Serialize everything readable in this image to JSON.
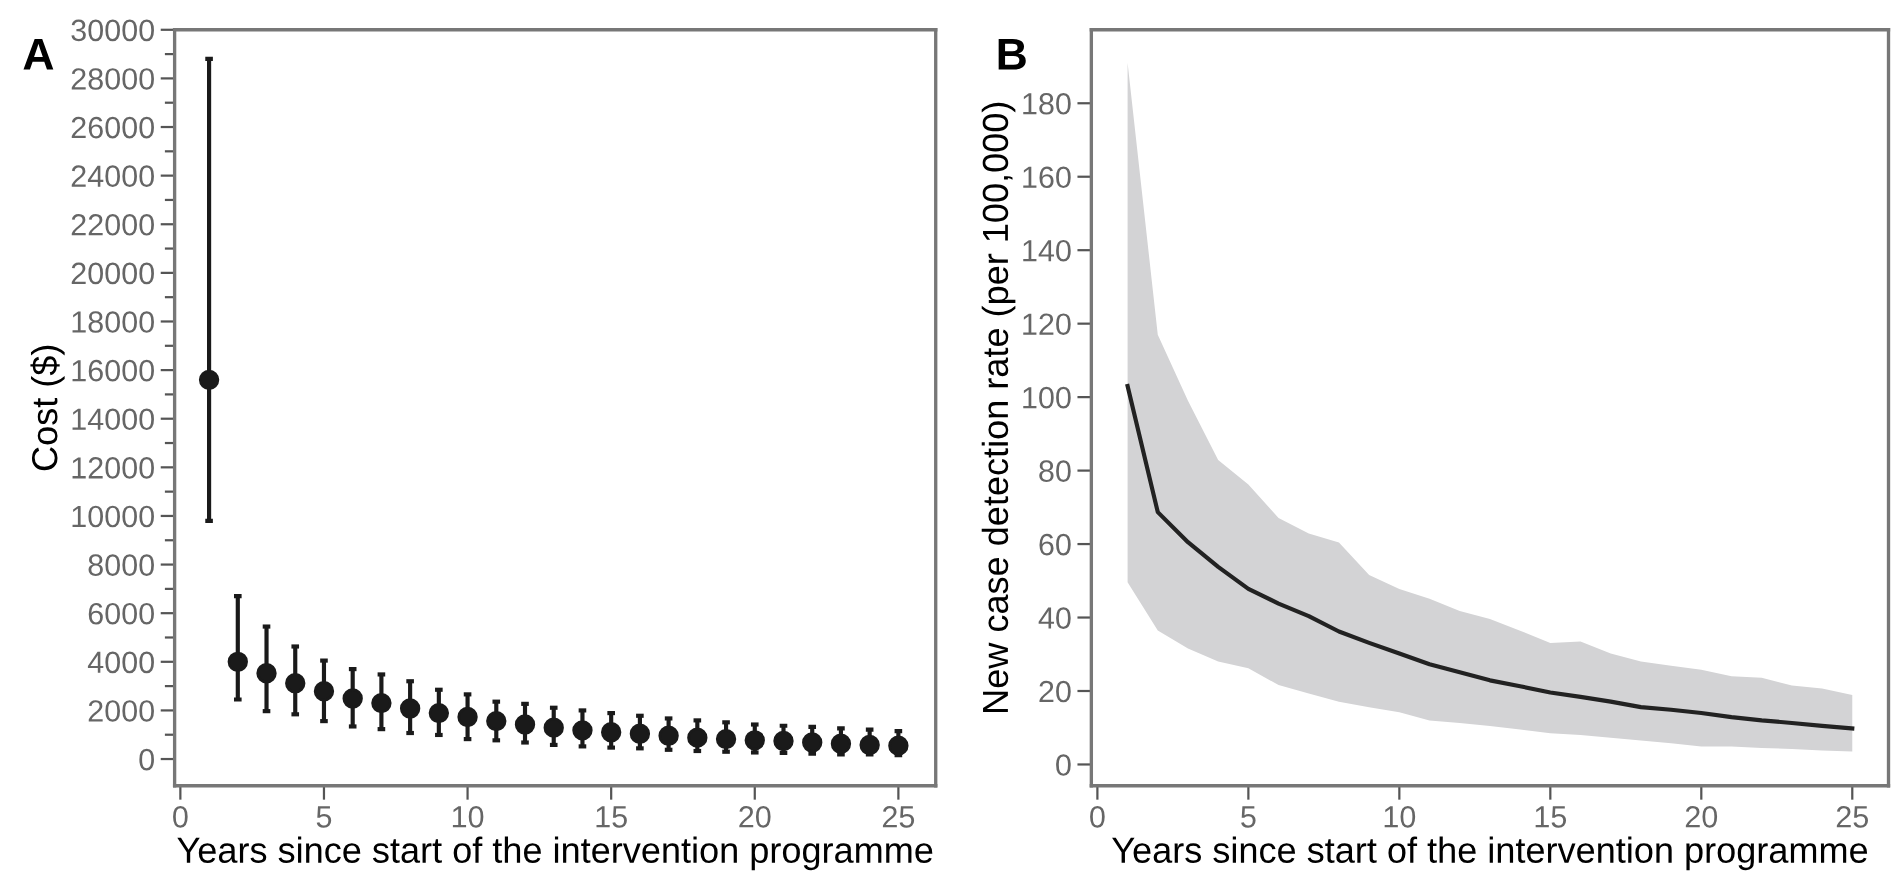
{
  "chart_data": [
    {
      "type": "scatter",
      "title": "A",
      "xlabel": "Years since start of the intervention programme",
      "ylabel": "Cost ($)",
      "marker": "circle",
      "grid": false,
      "legend": false,
      "x": [
        1,
        2,
        3,
        4,
        5,
        6,
        7,
        8,
        9,
        10,
        11,
        12,
        13,
        14,
        15,
        16,
        17,
        18,
        19,
        20,
        21,
        22,
        23,
        24,
        25
      ],
      "series": [
        {
          "color": "#1a1a1a",
          "values": [
            15600,
            4000,
            3530,
            3120,
            2790,
            2490,
            2300,
            2080,
            1890,
            1730,
            1560,
            1420,
            1290,
            1180,
            1100,
            1040,
            960,
            880,
            820,
            770,
            740,
            680,
            630,
            580,
            550
          ],
          "errors": [
            [
              9800,
              28800
            ],
            [
              2450,
              6700
            ],
            [
              1970,
              5450
            ],
            [
              1840,
              4630
            ],
            [
              1560,
              4050
            ],
            [
              1340,
              3700
            ],
            [
              1230,
              3480
            ],
            [
              1070,
              3200
            ],
            [
              990,
              2850
            ],
            [
              820,
              2660
            ],
            [
              770,
              2360
            ],
            [
              680,
              2270
            ],
            [
              580,
              2110
            ],
            [
              520,
              2000
            ],
            [
              470,
              1890
            ],
            [
              440,
              1780
            ],
            [
              380,
              1670
            ],
            [
              330,
              1590
            ],
            [
              300,
              1510
            ],
            [
              270,
              1420
            ],
            [
              250,
              1370
            ],
            [
              220,
              1320
            ],
            [
              190,
              1260
            ],
            [
              190,
              1210
            ],
            [
              160,
              1150
            ]
          ]
        }
      ],
      "xlim": [
        -0.2,
        26.3
      ],
      "xticks": [
        0,
        5,
        10,
        15,
        20,
        25
      ],
      "ylim": [
        -1100,
        30000
      ],
      "yticks": [
        0,
        {
          "value": 1000,
          "label": null
        },
        2000,
        {
          "value": 3000,
          "label": null
        },
        4000,
        {
          "value": 5000,
          "label": null
        },
        6000,
        {
          "value": 7000,
          "label": null
        },
        8000,
        {
          "value": 9000,
          "label": null
        },
        10000,
        {
          "value": 11000,
          "label": null
        },
        12000,
        {
          "value": 13000,
          "label": null
        },
        14000,
        {
          "value": 15000,
          "label": null
        },
        16000,
        {
          "value": 17000,
          "label": null
        },
        18000,
        {
          "value": 19000,
          "label": null
        },
        20000,
        {
          "value": 21000,
          "label": null
        },
        22000,
        {
          "value": 23000,
          "label": null
        },
        24000,
        {
          "value": 25000,
          "label": null
        },
        26000,
        {
          "value": 27000,
          "label": null
        },
        28000,
        {
          "value": 29000,
          "label": null
        },
        30000
      ]
    },
    {
      "type": "line",
      "title": "B",
      "xlabel": "Years since start of the intervention programme",
      "ylabel": "New case detection rate (per 100,000)",
      "marker": "none",
      "line_style": "solid",
      "grid": false,
      "legend": false,
      "x": [
        1,
        2,
        3,
        4,
        5,
        6,
        7,
        8,
        9,
        10,
        11,
        12,
        13,
        14,
        15,
        16,
        17,
        18,
        19,
        20,
        21,
        22,
        23,
        24,
        25
      ],
      "series": [
        {
          "color": "#222222",
          "values": [
            103,
            68.7,
            60.5,
            53.8,
            47.8,
            43.8,
            40.4,
            36.2,
            33.1,
            30.2,
            27.3,
            25.1,
            22.9,
            21.3,
            19.6,
            18.4,
            17.1,
            15.6,
            14.9,
            14.0,
            12.9,
            12.0,
            11.3,
            10.5,
            9.8
          ],
          "lower": [
            49.6,
            36.5,
            31.6,
            28,
            26.2,
            21.6,
            19.3,
            17.1,
            15.6,
            14.2,
            12,
            11.3,
            10.5,
            9.5,
            8.5,
            8,
            7.3,
            6.5,
            5.8,
            4.9,
            4.9,
            4.5,
            4.2,
            3.8,
            3.5
          ],
          "upper": [
            191,
            117,
            99,
            82.9,
            76.2,
            67.1,
            62.9,
            60.4,
            51.6,
            47.8,
            45.1,
            41.8,
            39.6,
            36.4,
            33.1,
            33.5,
            30.2,
            28,
            26.9,
            25.8,
            24,
            23.6,
            21.5,
            20.7,
            18.9
          ]
        }
      ],
      "xlim": [
        -0.2,
        26.2
      ],
      "xticks": [
        0,
        5,
        10,
        15,
        20,
        25
      ],
      "ylim": [
        -5.8,
        200
      ],
      "yticks": [
        0,
        20,
        40,
        60,
        80,
        100,
        120,
        140,
        160,
        180
      ]
    }
  ]
}
